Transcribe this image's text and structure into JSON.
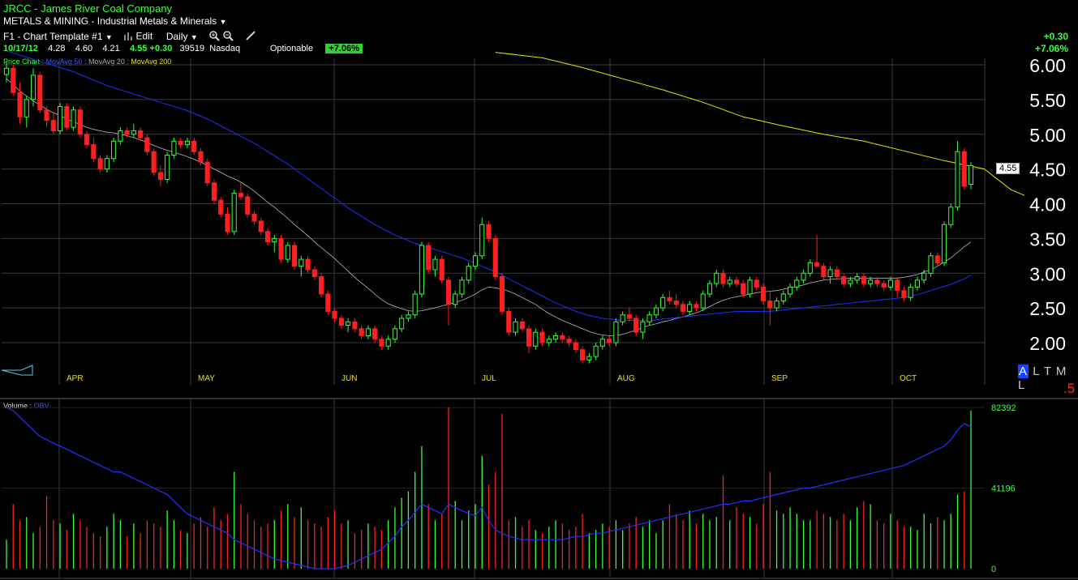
{
  "header": {
    "symbol_line": "JRCC - James River Coal Company",
    "sector_line": "METALS & MINING - Industrial Metals & Minerals",
    "template_label": "F1 - Chart Template #1",
    "edit_label": "Edit",
    "period_label": "Daily",
    "quote": {
      "date": "10/17/12",
      "open": "4.28",
      "high": "4.60",
      "low": "4.21",
      "close": "4.55",
      "change": "+0.30",
      "volume": "39519",
      "exchange": "Nasdaq",
      "optionable": "Optionable",
      "pct_change": "+7.06%"
    },
    "right_change": "+0.30",
    "right_pct": "+7.06%",
    "legend": {
      "price": "Price Chart",
      "ma50": "MovAvg 50",
      "ma20": "MovAvg 20",
      "ma200": "MovAvg 200"
    },
    "volume_legend": {
      "volume": "Volume",
      "obv": "OBV"
    }
  },
  "price_tag": "4.55",
  "altml": {
    "a": "A",
    "rest": "L T M L"
  },
  "five_label": ".5",
  "colors": {
    "up": "#39ff39",
    "down": "#ff1f1f",
    "ma20": "#b8b8b8",
    "ma50": "#1a33ff",
    "ma200": "#e6e600",
    "grid": "#3a3a3a"
  },
  "icons": [
    "dropdown-arrow-icon",
    "bar-chart-icon",
    "zoom-in-icon",
    "zoom-out-icon",
    "draw-pencil-icon",
    "scroll-tab-icon"
  ],
  "chart_data": {
    "type": "candlestick",
    "price_axis": {
      "ticks": [
        "6.00",
        "5.50",
        "5.00",
        "4.50",
        "4.00",
        "3.50",
        "3.00",
        "2.50",
        "2.00"
      ],
      "ylim": [
        2.0,
        6.0
      ]
    },
    "months": [
      "APR",
      "MAY",
      "JUN",
      "JUL",
      "AUG",
      "SEP",
      "OCT"
    ],
    "volume_axis": {
      "ticks": [
        "82392",
        "41196",
        "0"
      ],
      "ylim": [
        0,
        82392
      ]
    },
    "candles": [
      [
        5.86,
        6.05,
        5.75,
        5.95
      ],
      [
        5.95,
        6.0,
        5.55,
        5.6
      ],
      [
        5.6,
        5.75,
        5.15,
        5.25
      ],
      [
        5.25,
        5.55,
        5.1,
        5.5
      ],
      [
        5.5,
        5.95,
        5.4,
        5.85
      ],
      [
        5.85,
        5.9,
        5.3,
        5.35
      ],
      [
        5.35,
        5.4,
        5.1,
        5.2
      ],
      [
        5.2,
        5.3,
        5.0,
        5.05
      ],
      [
        5.05,
        5.45,
        5.0,
        5.4
      ],
      [
        5.4,
        5.45,
        5.05,
        5.1
      ],
      [
        5.1,
        5.4,
        5.05,
        5.35
      ],
      [
        5.35,
        5.4,
        4.95,
        5.0
      ],
      [
        5.0,
        5.05,
        4.8,
        4.85
      ],
      [
        4.85,
        4.95,
        4.6,
        4.65
      ],
      [
        4.65,
        4.7,
        4.45,
        4.5
      ],
      [
        4.5,
        4.7,
        4.45,
        4.65
      ],
      [
        4.65,
        4.95,
        4.6,
        4.9
      ],
      [
        4.9,
        5.1,
        4.85,
        5.05
      ],
      [
        5.05,
        5.1,
        4.95,
        5.0
      ],
      [
        5.0,
        5.15,
        4.95,
        5.05
      ],
      [
        5.05,
        5.1,
        4.9,
        4.95
      ],
      [
        4.95,
        5.0,
        4.7,
        4.75
      ],
      [
        4.75,
        4.8,
        4.4,
        4.45
      ],
      [
        4.45,
        4.55,
        4.25,
        4.35
      ],
      [
        4.35,
        4.75,
        4.3,
        4.7
      ],
      [
        4.7,
        4.95,
        4.65,
        4.9
      ],
      [
        4.9,
        4.95,
        4.8,
        4.85
      ],
      [
        4.85,
        4.95,
        4.8,
        4.9
      ],
      [
        4.9,
        4.95,
        4.7,
        4.75
      ],
      [
        4.75,
        4.8,
        4.55,
        4.6
      ],
      [
        4.6,
        4.65,
        4.25,
        4.3
      ],
      [
        4.3,
        4.35,
        4.0,
        4.05
      ],
      [
        4.05,
        4.1,
        3.8,
        3.85
      ],
      [
        3.85,
        3.95,
        3.55,
        3.6
      ],
      [
        3.6,
        4.2,
        3.55,
        4.15
      ],
      [
        4.15,
        4.3,
        4.05,
        4.1
      ],
      [
        4.1,
        4.15,
        3.8,
        3.85
      ],
      [
        3.85,
        3.9,
        3.7,
        3.75
      ],
      [
        3.75,
        3.8,
        3.55,
        3.6
      ],
      [
        3.6,
        3.65,
        3.4,
        3.45
      ],
      [
        3.45,
        3.55,
        3.3,
        3.5
      ],
      [
        3.5,
        3.55,
        3.15,
        3.2
      ],
      [
        3.2,
        3.45,
        3.15,
        3.4
      ],
      [
        3.4,
        3.45,
        3.05,
        3.1
      ],
      [
        3.1,
        3.25,
        2.95,
        3.2
      ],
      [
        3.2,
        3.25,
        3.0,
        3.05
      ],
      [
        3.05,
        3.1,
        2.9,
        2.95
      ],
      [
        2.95,
        3.0,
        2.65,
        2.7
      ],
      [
        2.7,
        2.75,
        2.4,
        2.45
      ],
      [
        2.45,
        2.5,
        2.3,
        2.35
      ],
      [
        2.35,
        2.4,
        2.2,
        2.25
      ],
      [
        2.25,
        2.35,
        2.15,
        2.3
      ],
      [
        2.3,
        2.35,
        2.15,
        2.2
      ],
      [
        2.2,
        2.25,
        2.05,
        2.1
      ],
      [
        2.1,
        2.25,
        2.05,
        2.2
      ],
      [
        2.2,
        2.25,
        2.0,
        2.05
      ],
      [
        2.05,
        2.1,
        1.9,
        1.95
      ],
      [
        1.95,
        2.1,
        1.9,
        2.05
      ],
      [
        2.05,
        2.25,
        2.0,
        2.2
      ],
      [
        2.2,
        2.4,
        2.15,
        2.35
      ],
      [
        2.35,
        2.45,
        2.3,
        2.4
      ],
      [
        2.4,
        2.75,
        2.35,
        2.7
      ],
      [
        2.7,
        3.45,
        2.65,
        3.4
      ],
      [
        3.4,
        3.45,
        3.0,
        3.05
      ],
      [
        3.05,
        3.25,
        2.95,
        3.2
      ],
      [
        3.2,
        3.25,
        2.85,
        2.9
      ],
      [
        2.9,
        2.95,
        2.25,
        2.55
      ],
      [
        2.55,
        2.75,
        2.5,
        2.7
      ],
      [
        2.7,
        2.95,
        2.65,
        2.9
      ],
      [
        2.9,
        3.15,
        2.85,
        3.1
      ],
      [
        3.1,
        3.3,
        3.05,
        3.25
      ],
      [
        3.25,
        3.8,
        3.2,
        3.7
      ],
      [
        3.7,
        3.75,
        3.45,
        3.5
      ],
      [
        3.5,
        3.55,
        2.9,
        2.95
      ],
      [
        2.95,
        3.0,
        2.4,
        2.45
      ],
      [
        2.45,
        2.5,
        2.1,
        2.15
      ],
      [
        2.15,
        2.35,
        2.1,
        2.3
      ],
      [
        2.3,
        2.35,
        2.15,
        2.2
      ],
      [
        2.2,
        2.25,
        1.85,
        1.95
      ],
      [
        1.95,
        2.2,
        1.9,
        2.15
      ],
      [
        2.15,
        2.2,
        1.95,
        2.0
      ],
      [
        2.0,
        2.1,
        1.95,
        2.05
      ],
      [
        2.05,
        2.15,
        2.0,
        2.1
      ],
      [
        2.1,
        2.15,
        2.0,
        2.05
      ],
      [
        2.05,
        2.1,
        1.95,
        2.0
      ],
      [
        2.0,
        2.05,
        1.85,
        1.9
      ],
      [
        1.9,
        1.95,
        1.7,
        1.75
      ],
      [
        1.75,
        1.85,
        1.7,
        1.8
      ],
      [
        1.8,
        2.0,
        1.75,
        1.95
      ],
      [
        1.95,
        2.1,
        1.9,
        2.05
      ],
      [
        2.05,
        2.1,
        1.95,
        2.0
      ],
      [
        2.0,
        2.35,
        1.95,
        2.3
      ],
      [
        2.3,
        2.45,
        2.25,
        2.4
      ],
      [
        2.4,
        2.5,
        2.3,
        2.35
      ],
      [
        2.35,
        2.4,
        2.1,
        2.15
      ],
      [
        2.15,
        2.35,
        2.05,
        2.3
      ],
      [
        2.3,
        2.45,
        2.25,
        2.4
      ],
      [
        2.4,
        2.55,
        2.35,
        2.5
      ],
      [
        2.5,
        2.7,
        2.45,
        2.65
      ],
      [
        2.65,
        2.75,
        2.55,
        2.6
      ],
      [
        2.6,
        2.7,
        2.5,
        2.55
      ],
      [
        2.55,
        2.6,
        2.4,
        2.45
      ],
      [
        2.45,
        2.6,
        2.4,
        2.55
      ],
      [
        2.55,
        2.6,
        2.45,
        2.5
      ],
      [
        2.5,
        2.75,
        2.45,
        2.7
      ],
      [
        2.7,
        2.9,
        2.65,
        2.85
      ],
      [
        2.85,
        3.05,
        2.8,
        3.0
      ],
      [
        3.0,
        3.05,
        2.8,
        2.85
      ],
      [
        2.85,
        2.95,
        2.8,
        2.9
      ],
      [
        2.9,
        2.95,
        2.8,
        2.85
      ],
      [
        2.85,
        2.9,
        2.65,
        2.7
      ],
      [
        2.7,
        2.95,
        2.65,
        2.9
      ],
      [
        2.9,
        2.95,
        2.75,
        2.8
      ],
      [
        2.8,
        2.85,
        2.55,
        2.6
      ],
      [
        2.6,
        2.75,
        2.25,
        2.5
      ],
      [
        2.5,
        2.65,
        2.45,
        2.6
      ],
      [
        2.6,
        2.75,
        2.55,
        2.7
      ],
      [
        2.7,
        2.85,
        2.65,
        2.8
      ],
      [
        2.8,
        2.95,
        2.75,
        2.9
      ],
      [
        2.9,
        3.05,
        2.85,
        3.0
      ],
      [
        3.0,
        3.2,
        2.95,
        3.15
      ],
      [
        3.15,
        3.55,
        3.1,
        3.1
      ],
      [
        3.1,
        3.15,
        2.9,
        2.95
      ],
      [
        2.95,
        3.1,
        2.85,
        3.05
      ],
      [
        3.05,
        3.1,
        2.9,
        2.95
      ],
      [
        2.95,
        3.0,
        2.8,
        2.85
      ],
      [
        2.85,
        2.95,
        2.8,
        2.9
      ],
      [
        2.9,
        3.0,
        2.85,
        2.95
      ],
      [
        2.95,
        3.0,
        2.8,
        2.85
      ],
      [
        2.85,
        2.95,
        2.8,
        2.9
      ],
      [
        2.9,
        2.95,
        2.8,
        2.85
      ],
      [
        2.85,
        2.9,
        2.75,
        2.8
      ],
      [
        2.8,
        2.95,
        2.75,
        2.9
      ],
      [
        2.9,
        2.95,
        2.65,
        2.75
      ],
      [
        2.75,
        2.8,
        2.6,
        2.65
      ],
      [
        2.65,
        2.85,
        2.6,
        2.8
      ],
      [
        2.8,
        2.95,
        2.75,
        2.9
      ],
      [
        2.9,
        3.05,
        2.85,
        3.0
      ],
      [
        3.0,
        3.3,
        2.95,
        3.25
      ],
      [
        3.25,
        3.3,
        3.1,
        3.15
      ],
      [
        3.15,
        3.75,
        3.1,
        3.7
      ],
      [
        3.7,
        4.0,
        3.65,
        3.95
      ],
      [
        3.95,
        4.9,
        3.9,
        4.75
      ],
      [
        4.75,
        4.8,
        4.2,
        4.25
      ],
      [
        4.28,
        4.6,
        4.21,
        4.55
      ]
    ],
    "ma20": [
      5.8,
      5.72,
      5.62,
      5.55,
      5.48,
      5.42,
      5.36,
      5.31,
      5.27,
      5.22,
      5.18,
      5.14,
      5.1,
      5.07,
      5.05,
      5.03,
      5.02,
      5.0,
      4.98,
      4.95,
      4.92,
      4.88,
      4.84,
      4.8,
      4.77,
      4.74,
      4.71,
      4.68,
      4.64,
      4.6,
      4.55,
      4.5,
      4.45,
      4.4,
      4.36,
      4.31,
      4.25,
      4.18,
      4.1,
      4.02,
      3.95,
      3.87,
      3.79,
      3.7,
      3.62,
      3.54,
      3.45,
      3.37,
      3.29,
      3.21,
      3.12,
      3.03,
      2.94,
      2.86,
      2.78,
      2.7,
      2.62,
      2.56,
      2.52,
      2.49,
      2.46,
      2.45,
      2.46,
      2.48,
      2.5,
      2.53,
      2.55,
      2.58,
      2.61,
      2.65,
      2.7,
      2.76,
      2.8,
      2.79,
      2.77,
      2.74,
      2.7,
      2.65,
      2.6,
      2.55,
      2.48,
      2.42,
      2.37,
      2.32,
      2.28,
      2.24,
      2.2,
      2.16,
      2.13,
      2.11,
      2.1,
      2.1,
      2.12,
      2.15,
      2.18,
      2.22,
      2.25,
      2.27,
      2.3,
      2.32,
      2.35,
      2.37,
      2.4,
      2.43,
      2.47,
      2.52,
      2.57,
      2.61,
      2.64,
      2.66,
      2.68,
      2.7,
      2.72,
      2.73,
      2.74,
      2.75,
      2.77,
      2.79,
      2.81,
      2.83,
      2.86,
      2.88,
      2.9,
      2.91,
      2.92,
      2.92,
      2.93,
      2.93,
      2.93,
      2.93,
      2.93,
      2.93,
      2.93,
      2.93,
      2.94,
      2.96,
      2.98,
      3.02,
      3.05,
      3.1,
      3.16,
      3.22,
      3.3,
      3.38,
      3.45
    ],
    "ma50": [
      6.2,
      6.17,
      6.14,
      6.11,
      6.08,
      6.05,
      6.02,
      5.99,
      5.96,
      5.93,
      5.9,
      5.86,
      5.82,
      5.78,
      5.74,
      5.7,
      5.67,
      5.64,
      5.61,
      5.58,
      5.55,
      5.52,
      5.49,
      5.46,
      5.43,
      5.4,
      5.37,
      5.34,
      5.3,
      5.26,
      5.22,
      5.17,
      5.12,
      5.07,
      5.02,
      4.97,
      4.92,
      4.87,
      4.81,
      4.75,
      4.69,
      4.63,
      4.57,
      4.5,
      4.43,
      4.36,
      4.29,
      4.22,
      4.15,
      4.08,
      4.01,
      3.94,
      3.88,
      3.82,
      3.76,
      3.7,
      3.65,
      3.6,
      3.55,
      3.51,
      3.47,
      3.43,
      3.4,
      3.37,
      3.34,
      3.31,
      3.28,
      3.25,
      3.22,
      3.18,
      3.14,
      3.1,
      3.06,
      3.02,
      2.97,
      2.92,
      2.87,
      2.82,
      2.77,
      2.72,
      2.67,
      2.62,
      2.57,
      2.53,
      2.49,
      2.45,
      2.42,
      2.39,
      2.37,
      2.35,
      2.34,
      2.33,
      2.32,
      2.32,
      2.32,
      2.32,
      2.32,
      2.33,
      2.34,
      2.35,
      2.36,
      2.37,
      2.38,
      2.39,
      2.4,
      2.41,
      2.42,
      2.43,
      2.44,
      2.45,
      2.45,
      2.45,
      2.45,
      2.45,
      2.45,
      2.46,
      2.47,
      2.48,
      2.49,
      2.5,
      2.51,
      2.52,
      2.53,
      2.54,
      2.55,
      2.56,
      2.57,
      2.58,
      2.59,
      2.6,
      2.61,
      2.62,
      2.63,
      2.64,
      2.65,
      2.67,
      2.69,
      2.72,
      2.75,
      2.78,
      2.81,
      2.84,
      2.88,
      2.92,
      2.97
    ],
    "ma200": [
      [
        73,
        6.18
      ],
      [
        80,
        6.1
      ],
      [
        86,
        5.96
      ],
      [
        92,
        5.8
      ],
      [
        98,
        5.64
      ],
      [
        104,
        5.46
      ],
      [
        110,
        5.25
      ],
      [
        116,
        5.12
      ],
      [
        122,
        5.0
      ],
      [
        128,
        4.9
      ],
      [
        134,
        4.76
      ],
      [
        140,
        4.62
      ],
      [
        146,
        4.5
      ],
      [
        150,
        4.2
      ],
      [
        152,
        4.12
      ]
    ],
    "volume": [
      18,
      40,
      30,
      32,
      22,
      26,
      45,
      30,
      28,
      24,
      34,
      30,
      26,
      22,
      20,
      26,
      34,
      30,
      20,
      28,
      22,
      30,
      28,
      26,
      36,
      30,
      24,
      22,
      28,
      32,
      26,
      38,
      30,
      34,
      60,
      40,
      34,
      30,
      26,
      28,
      30,
      36,
      40,
      32,
      38,
      30,
      28,
      26,
      32,
      36,
      28,
      30,
      22,
      24,
      28,
      26,
      24,
      30,
      38,
      44,
      48,
      60,
      76,
      40,
      30,
      34,
      100,
      42,
      30,
      36,
      40,
      70,
      52,
      60,
      96,
      30,
      32,
      26,
      30,
      24,
      22,
      26,
      30,
      28,
      24,
      26,
      34,
      22,
      24,
      28,
      26,
      30,
      24,
      28,
      32,
      26,
      30,
      22,
      30,
      40,
      34,
      30,
      36,
      28,
      34,
      30,
      32,
      58,
      30,
      38,
      34,
      32,
      28,
      40,
      60,
      36,
      34,
      38,
      34,
      30,
      30,
      36,
      34,
      32,
      30,
      34,
      30,
      38,
      42,
      40,
      30,
      28,
      34,
      30,
      26,
      26,
      24,
      34,
      28,
      32,
      30,
      34,
      46,
      48,
      98
    ],
    "obv": [
      100,
      98,
      94,
      90,
      86,
      82,
      80,
      78,
      76,
      74,
      72,
      70,
      68,
      66,
      64,
      62,
      60,
      60,
      58,
      56,
      54,
      52,
      50,
      48,
      46,
      42,
      38,
      34,
      32,
      30,
      28,
      26,
      24,
      22,
      18,
      16,
      14,
      12,
      10,
      8,
      6,
      5,
      4,
      3,
      2,
      1,
      0,
      0,
      0,
      0,
      1,
      2,
      4,
      6,
      8,
      10,
      12,
      16,
      20,
      26,
      30,
      35,
      40,
      38,
      36,
      34,
      40,
      38,
      36,
      34,
      33,
      38,
      30,
      24,
      22,
      20,
      19,
      18,
      18,
      18,
      18,
      18,
      18,
      18,
      19,
      20,
      20,
      21,
      22,
      22,
      23,
      24,
      25,
      26,
      27,
      28,
      29,
      30,
      31,
      32,
      33,
      34,
      35,
      36,
      37,
      38,
      39,
      40,
      40,
      41,
      42,
      42,
      43,
      44,
      45,
      46,
      47,
      48,
      49,
      50,
      50,
      51,
      52,
      53,
      54,
      55,
      56,
      57,
      58,
      59,
      60,
      61,
      62,
      63,
      64,
      66,
      68,
      70,
      72,
      74,
      76,
      80,
      86,
      90,
      88
    ]
  }
}
